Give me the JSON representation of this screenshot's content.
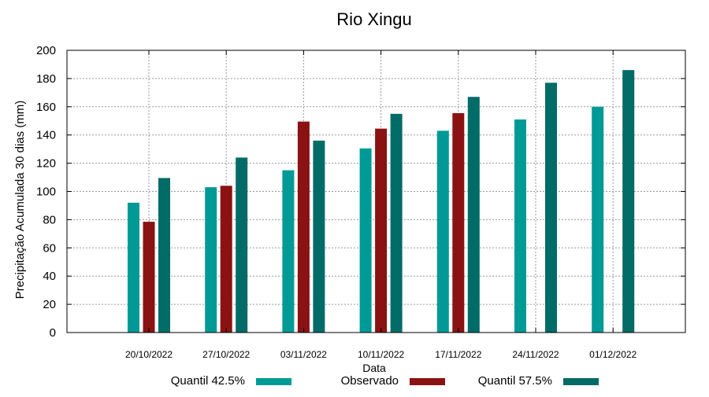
{
  "chart_data": {
    "type": "bar",
    "title": "Rio Xingu",
    "xlabel": "Data",
    "ylabel": "Precipitação Acumulada 30 dias (mm)",
    "ylim": [
      0,
      200
    ],
    "yticks": [
      0,
      20,
      40,
      60,
      80,
      100,
      120,
      140,
      160,
      180,
      200
    ],
    "grid": true,
    "legend_position": "bottom",
    "categories": [
      "20/10/2022",
      "27/10/2022",
      "03/11/2022",
      "10/11/2022",
      "17/11/2022",
      "24/11/2022",
      "01/12/2022"
    ],
    "series": [
      {
        "name": "Quantil 42.5%",
        "color": "#009a96",
        "values": [
          92,
          103,
          115,
          130.5,
          143,
          151,
          160
        ]
      },
      {
        "name": "Observado",
        "color": "#8b1212",
        "values": [
          78.5,
          104,
          149.5,
          144.5,
          155.5,
          null,
          null
        ]
      },
      {
        "name": "Quantil 57.5%",
        "color": "#006b67",
        "values": [
          109.5,
          124,
          136,
          155,
          167,
          177,
          186
        ]
      }
    ]
  }
}
